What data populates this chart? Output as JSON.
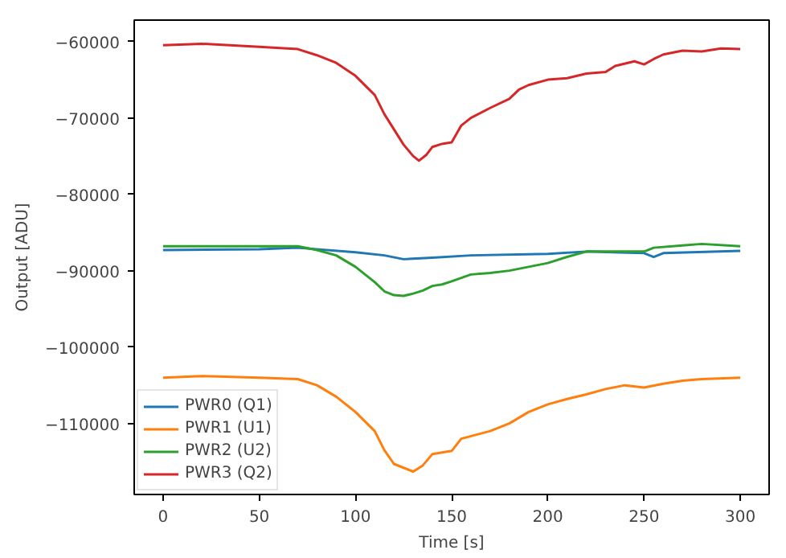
{
  "chart_data": {
    "type": "line",
    "xlabel": "Time [s]",
    "ylabel": "Output [ADU]",
    "xlim": [
      -15,
      315
    ],
    "ylim": [
      -119300,
      -57200
    ],
    "xticks": [
      0,
      50,
      100,
      150,
      200,
      250,
      300
    ],
    "yticks": [
      {
        "value": -110000,
        "label": "−110000"
      },
      {
        "value": -100000,
        "label": "−100000"
      },
      {
        "value": -90000,
        "label": "−90000"
      },
      {
        "value": -80000,
        "label": "−80000"
      },
      {
        "value": -70000,
        "label": "−70000"
      },
      {
        "value": -60000,
        "label": "−60000"
      }
    ],
    "grid": false,
    "legend": "bottom left",
    "line_style": "solid",
    "series": [
      {
        "name": "PWR0 (Q1)",
        "color": "#1f77b4",
        "x": [
          0,
          50,
          70,
          100,
          115,
          125,
          140,
          160,
          200,
          220,
          250,
          255,
          260,
          300
        ],
        "values": [
          -87300,
          -87200,
          -87000,
          -87600,
          -88000,
          -88500,
          -88300,
          -88000,
          -87800,
          -87500,
          -87700,
          -88200,
          -87700,
          -87400
        ]
      },
      {
        "name": "PWR1 (U1)",
        "color": "#ff7f0e",
        "x": [
          0,
          20,
          50,
          70,
          80,
          90,
          100,
          110,
          115,
          120,
          125,
          130,
          135,
          140,
          150,
          155,
          170,
          180,
          190,
          200,
          210,
          220,
          230,
          240,
          250,
          260,
          270,
          280,
          300
        ],
        "values": [
          -104000,
          -103800,
          -104000,
          -104200,
          -105000,
          -106500,
          -108500,
          -111000,
          -113500,
          -115300,
          -115800,
          -116300,
          -115500,
          -114000,
          -113600,
          -112000,
          -111000,
          -110000,
          -108500,
          -107500,
          -106800,
          -106200,
          -105500,
          -105000,
          -105300,
          -104800,
          -104400,
          -104200,
          -104000
        ]
      },
      {
        "name": "PWR2 (U2)",
        "color": "#2ca02c",
        "x": [
          0,
          70,
          80,
          90,
          100,
          105,
          110,
          115,
          120,
          125,
          130,
          135,
          140,
          145,
          150,
          160,
          170,
          180,
          190,
          200,
          210,
          220,
          240,
          250,
          255,
          270,
          280,
          300
        ],
        "values": [
          -86800,
          -86800,
          -87300,
          -88000,
          -89500,
          -90500,
          -91500,
          -92700,
          -93200,
          -93300,
          -93000,
          -92600,
          -92000,
          -91800,
          -91400,
          -90500,
          -90300,
          -90000,
          -89500,
          -89000,
          -88200,
          -87500,
          -87500,
          -87500,
          -87000,
          -86700,
          -86500,
          -86800
        ]
      },
      {
        "name": "PWR3 (Q2)",
        "color": "#d62728",
        "x": [
          0,
          20,
          50,
          70,
          80,
          90,
          100,
          110,
          115,
          120,
          125,
          130,
          133,
          137,
          140,
          145,
          150,
          155,
          160,
          170,
          180,
          185,
          190,
          200,
          210,
          220,
          230,
          235,
          245,
          250,
          255,
          260,
          270,
          280,
          290,
          300
        ],
        "values": [
          -60500,
          -60300,
          -60700,
          -61000,
          -61800,
          -62800,
          -64500,
          -67000,
          -69500,
          -71500,
          -73500,
          -75000,
          -75600,
          -74800,
          -73800,
          -73400,
          -73200,
          -71000,
          -70000,
          -68700,
          -67500,
          -66300,
          -65700,
          -65000,
          -64800,
          -64200,
          -64000,
          -63200,
          -62600,
          -63000,
          -62300,
          -61700,
          -61200,
          -61300,
          -60900,
          -61000
        ]
      }
    ]
  }
}
